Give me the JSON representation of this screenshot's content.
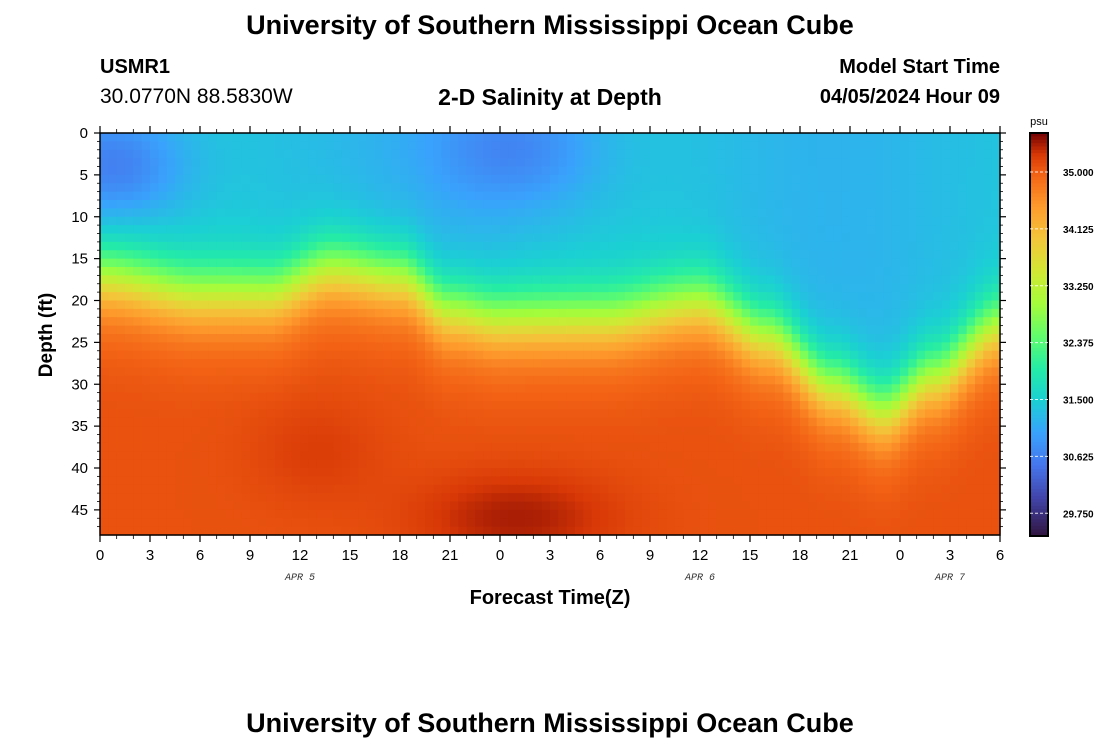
{
  "header": {
    "title": "University of Southern Mississippi Ocean Cube",
    "station_id": "USMR1",
    "coords": "30.0770N  88.5830W",
    "chart_title": "2-D Salinity at Depth",
    "model_label": "Model Start Time",
    "model_value": "04/05/2024 Hour 09"
  },
  "footer": {
    "title": "University of Southern Mississippi Ocean Cube"
  },
  "chart_data": {
    "type": "heatmap",
    "title": "2-D Salinity at Depth",
    "xlabel": "Forecast Time(Z)",
    "ylabel": "Depth (ft)",
    "x_range_hours": [
      0,
      54
    ],
    "ylim": [
      0,
      48
    ],
    "x_ticks": [
      "0",
      "3",
      "6",
      "9",
      "12",
      "15",
      "18",
      "21",
      "0",
      "3",
      "6",
      "9",
      "12",
      "15",
      "18",
      "21",
      "0",
      "3",
      "6"
    ],
    "y_ticks": [
      "0",
      "5",
      "10",
      "15",
      "20",
      "25",
      "30",
      "35",
      "40",
      "45"
    ],
    "date_labels": [
      {
        "label": "APR 5",
        "hour": 12
      },
      {
        "label": "APR 6",
        "hour": 36
      },
      {
        "label": "APR 7",
        "hour": 51
      }
    ],
    "colorbar": {
      "unit": "psu",
      "vmin": 29.4,
      "vmax": 35.6,
      "ticks": [
        "35.000",
        "34.125",
        "33.250",
        "32.375",
        "31.500",
        "30.625",
        "29.750"
      ],
      "tick_values": [
        35.0,
        34.125,
        33.25,
        32.375,
        31.5,
        30.625,
        29.75
      ]
    },
    "halocline_depth_ft": [
      {
        "hour": 0,
        "depth": 17
      },
      {
        "hour": 6,
        "depth": 19
      },
      {
        "hour": 10,
        "depth": 19
      },
      {
        "hour": 14,
        "depth": 16
      },
      {
        "hour": 18,
        "depth": 17
      },
      {
        "hour": 21,
        "depth": 21
      },
      {
        "hour": 24,
        "depth": 22
      },
      {
        "hour": 30,
        "depth": 22
      },
      {
        "hour": 36,
        "depth": 20
      },
      {
        "hour": 40,
        "depth": 24
      },
      {
        "hour": 44,
        "depth": 30
      },
      {
        "hour": 47,
        "depth": 33
      },
      {
        "hour": 50,
        "depth": 29
      },
      {
        "hour": 54,
        "depth": 23
      }
    ],
    "surface_psu": 31.3,
    "bottom_psu": 35.1
  }
}
